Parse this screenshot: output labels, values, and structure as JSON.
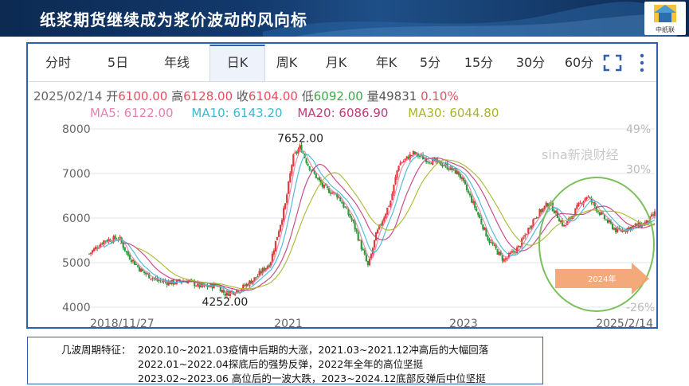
{
  "page_title": "纸浆期货继续成为浆价波动的风向标",
  "logo_text": "中纸联",
  "tabs": [
    "分时",
    "5日",
    "年线",
    "日K",
    "周K",
    "月K",
    "年K",
    "5分",
    "15分",
    "30分",
    "60分"
  ],
  "active_tab": "日K",
  "quote": {
    "date": "2025/02/14",
    "open_label": "开",
    "open": "6100.00",
    "high_label": "高",
    "high": "6128.00",
    "close_label": "收",
    "close": "6104.00",
    "low_label": "低",
    "low": "6092.00",
    "vol_label": "量",
    "vol": "49831",
    "change": "0.10%"
  },
  "ma": {
    "ma5": "MA5: 6122.00",
    "ma10": "MA10: 6143.20",
    "ma20": "MA20: 6086.90",
    "ma30": "MA30: 6044.80"
  },
  "colors": {
    "up": "#e23a3a",
    "down": "#2e9b3a",
    "ma5": "#e97fb0",
    "ma10": "#3fb6d2",
    "ma20": "#c43a7a",
    "ma30": "#a8b628",
    "accent": "#2f5fb3",
    "circle": "#7bbf5c",
    "arrow": "#f0a070"
  },
  "icons": [
    "fullscreen-icon",
    "more-vertical-icon"
  ],
  "watermark": "sina新浪财经",
  "chart_data": {
    "type": "line",
    "title": "",
    "x_ticks": [
      "2018/11/27",
      "2021",
      "2023",
      "2025/2/14"
    ],
    "y_ticks": [
      4000,
      5000,
      6000,
      7000,
      8000
    ],
    "right_ticks": [
      "49%",
      "30%",
      "",
      "",
      "-26%"
    ],
    "ylim": [
      4000,
      8000
    ],
    "annotations": [
      {
        "label": "7652.00",
        "x": "2021-03",
        "y": 7652
      },
      {
        "label": "4252.00",
        "x": "2020-05",
        "y": 4252
      }
    ],
    "arrow_label": "2024年",
    "series": [
      {
        "x": [
          "2018-11",
          "2019-01",
          "2019-03",
          "2019-04",
          "2019-06",
          "2019-08",
          "2019-10",
          "2019-12",
          "2020-02",
          "2020-04",
          "2020-05",
          "2020-07",
          "2020-09",
          "2020-11",
          "2021-01",
          "2021-02",
          "2021-03",
          "2021-04",
          "2021-06",
          "2021-08",
          "2021-10",
          "2021-12",
          "2022-01",
          "2022-03",
          "2022-04",
          "2022-06",
          "2022-08",
          "2022-10",
          "2022-12",
          "2023-02",
          "2023-04",
          "2023-06",
          "2023-08",
          "2023-10",
          "2023-12",
          "2024-02",
          "2024-04",
          "2024-05",
          "2024-07",
          "2024-09",
          "2024-11",
          "2025-01",
          "2025-02"
        ],
        "values": [
          5200,
          5500,
          5550,
          5200,
          4800,
          4600,
          4550,
          4600,
          4450,
          4500,
          4300,
          4400,
          4650,
          5000,
          6300,
          7350,
          7600,
          7200,
          6700,
          6500,
          5900,
          4900,
          5600,
          6400,
          7200,
          7450,
          7300,
          7200,
          7000,
          6300,
          5500,
          5050,
          5350,
          6000,
          6350,
          5800,
          6300,
          6500,
          6050,
          5700,
          5800,
          5900,
          6104
        ]
      }
    ],
    "grid": true,
    "legend": "none"
  },
  "note": {
    "label": "几波周期特征：",
    "line1": "2020.10~2021.03疫情中后期的大涨，2021.03~2021.12冲高后的大幅回落",
    "line2": "2022.01~2022.04探底后的强势反弹，2022年全年的高位坚挺",
    "line3": "2023.02~2023.06 高位后的一波大跌，2023~2024.12底部反弹后中位坚挺"
  }
}
